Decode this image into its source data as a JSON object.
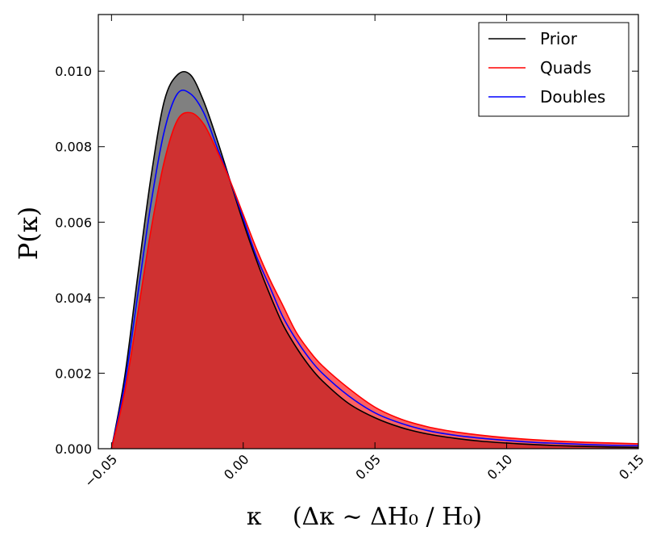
{
  "chart_data": {
    "type": "area",
    "xlabel": "κ    (Δκ ~ ΔH₀ / H₀)",
    "ylabel": "P(κ)",
    "xlim": [
      -0.055,
      0.15
    ],
    "ylim": [
      0,
      0.0115
    ],
    "xticks": [
      -0.05,
      0.0,
      0.05,
      0.1,
      0.15
    ],
    "xtick_labels": [
      "−0.05",
      "0.00",
      "0.05",
      "0.10",
      "0.15"
    ],
    "yticks": [
      0.0,
      0.002,
      0.004,
      0.006,
      0.008,
      0.01
    ],
    "ytick_labels": [
      "0.000",
      "0.002",
      "0.004",
      "0.006",
      "0.008",
      "0.010"
    ],
    "legend_position": "top-right",
    "grid": false,
    "series": [
      {
        "name": "Prior",
        "color": "#000000",
        "fill": "#808080",
        "x": [
          -0.05,
          -0.045,
          -0.04,
          -0.035,
          -0.03,
          -0.025,
          -0.02,
          -0.015,
          -0.01,
          -0.005,
          0.0,
          0.005,
          0.01,
          0.015,
          0.02,
          0.025,
          0.03,
          0.04,
          0.05,
          0.06,
          0.07,
          0.08,
          0.09,
          0.1,
          0.11,
          0.12,
          0.13,
          0.14,
          0.15
        ],
        "values": [
          0.0,
          0.0019,
          0.0046,
          0.0072,
          0.0092,
          0.0099,
          0.0099,
          0.0092,
          0.0082,
          0.0071,
          0.006,
          0.005,
          0.0041,
          0.0033,
          0.0027,
          0.0022,
          0.0018,
          0.0012,
          0.00082,
          0.00056,
          0.00039,
          0.00028,
          0.0002,
          0.00015,
          0.00011,
          8e-05,
          6e-05,
          4.5e-05,
          3.5e-05
        ]
      },
      {
        "name": "Quads",
        "color": "#ff0000",
        "fill": "#ff0000",
        "x": [
          -0.05,
          -0.045,
          -0.04,
          -0.035,
          -0.03,
          -0.025,
          -0.02,
          -0.015,
          -0.01,
          -0.005,
          0.0,
          0.005,
          0.01,
          0.015,
          0.02,
          0.025,
          0.03,
          0.04,
          0.05,
          0.06,
          0.07,
          0.08,
          0.09,
          0.1,
          0.11,
          0.12,
          0.13,
          0.14,
          0.15
        ],
        "values": [
          0.0,
          0.0015,
          0.0036,
          0.0058,
          0.0076,
          0.0087,
          0.0089,
          0.0086,
          0.0079,
          0.0071,
          0.0062,
          0.0053,
          0.0045,
          0.0038,
          0.0031,
          0.0026,
          0.0022,
          0.0016,
          0.0011,
          0.00078,
          0.00058,
          0.00045,
          0.00036,
          0.00029,
          0.00024,
          0.0002,
          0.00017,
          0.00015,
          0.00013
        ]
      },
      {
        "name": "Doubles",
        "color": "#0000ff",
        "fill": "none",
        "x": [
          -0.05,
          -0.045,
          -0.04,
          -0.035,
          -0.03,
          -0.025,
          -0.02,
          -0.015,
          -0.01,
          -0.005,
          0.0,
          0.005,
          0.01,
          0.015,
          0.02,
          0.025,
          0.03,
          0.04,
          0.05,
          0.06,
          0.07,
          0.08,
          0.09,
          0.1,
          0.11,
          0.12,
          0.13,
          0.14,
          0.15
        ],
        "values": [
          0.0,
          0.0017,
          0.0041,
          0.0065,
          0.0084,
          0.0094,
          0.0094,
          0.0089,
          0.008,
          0.0071,
          0.0061,
          0.0051,
          0.0043,
          0.0035,
          0.0029,
          0.0024,
          0.002,
          0.0014,
          0.00095,
          0.00067,
          0.00048,
          0.00036,
          0.00028,
          0.00022,
          0.00017,
          0.00014,
          0.00011,
          9e-05,
          8e-05
        ]
      }
    ]
  }
}
